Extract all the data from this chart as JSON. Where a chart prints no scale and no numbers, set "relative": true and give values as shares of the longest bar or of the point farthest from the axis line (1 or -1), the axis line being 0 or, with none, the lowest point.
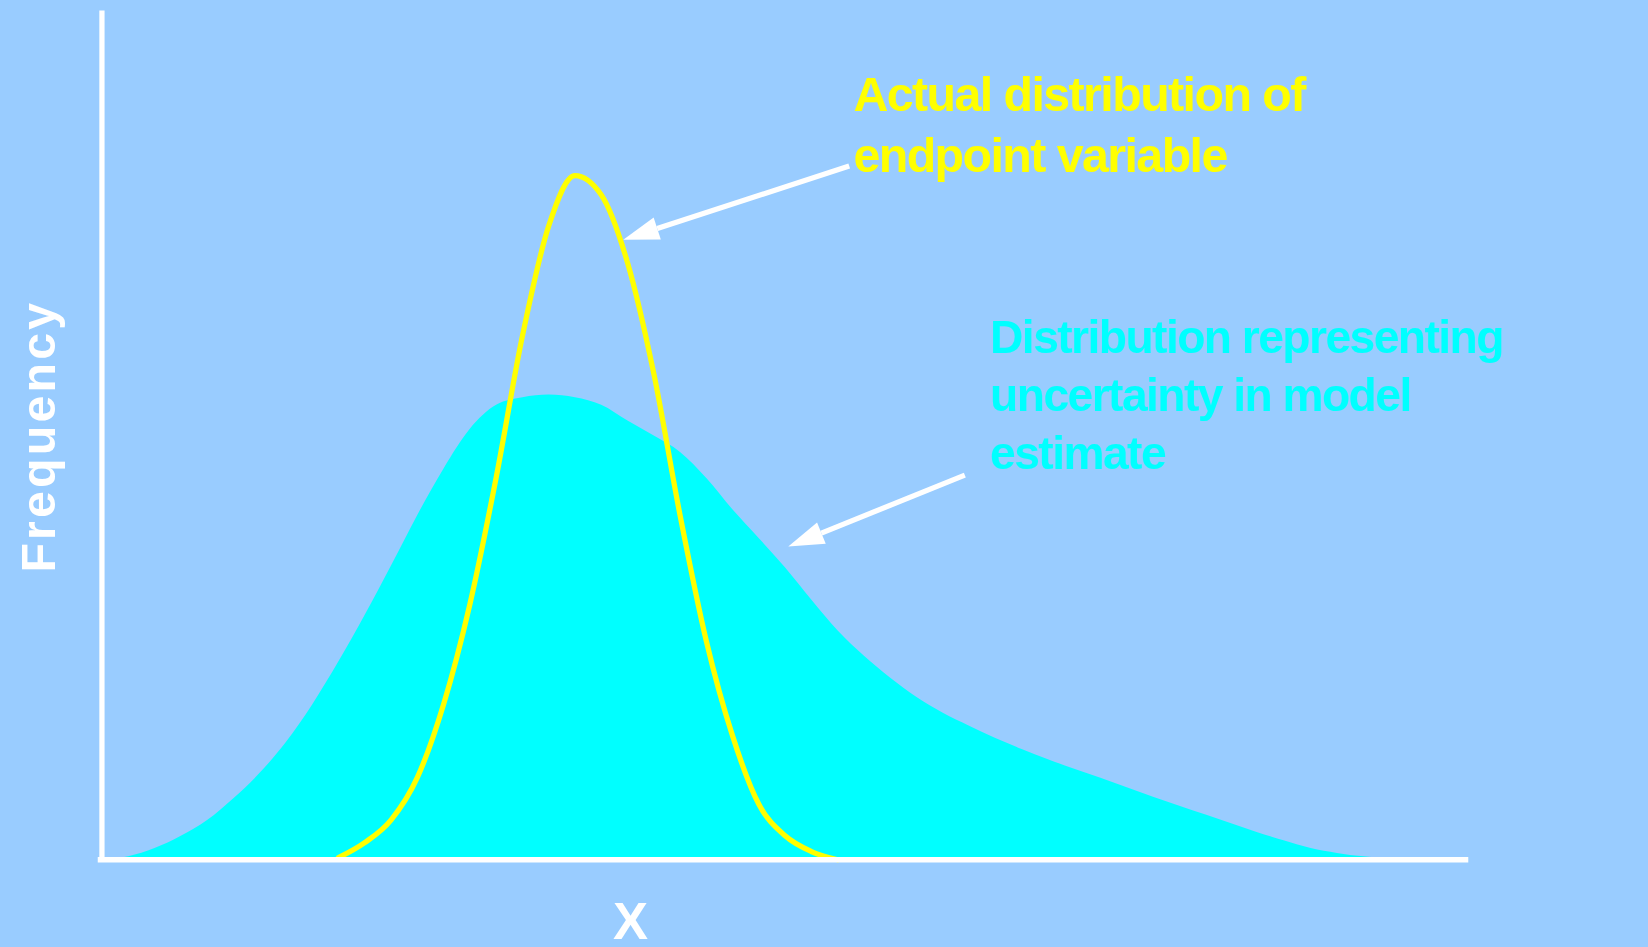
{
  "chart_data": {
    "type": "area",
    "xlabel": "X",
    "ylabel": "Frequency",
    "relative": true,
    "legend": false,
    "grid": false,
    "categories": [
      null,
      null,
      null,
      null,
      null,
      null,
      null,
      null,
      null,
      null,
      null,
      null,
      null,
      null,
      null,
      null,
      null,
      null,
      null,
      null,
      null,
      null,
      null,
      null,
      null,
      null,
      null,
      null,
      null,
      null,
      null,
      null,
      null,
      null,
      null,
      null,
      null,
      null,
      null,
      null,
      null,
      null,
      null,
      null,
      null,
      null,
      null,
      null,
      null,
      null,
      null,
      null,
      null
    ],
    "series": [
      {
        "name": "Distribution representing uncertainty in model estimate",
        "color": "#00ffff",
        "values": [
          0,
          0.005,
          0.017,
          0.035,
          0.058,
          0.09,
          0.127,
          0.172,
          0.227,
          0.29,
          0.358,
          0.43,
          0.504,
          0.572,
          0.63,
          0.665,
          0.676,
          0.68,
          0.676,
          0.665,
          0.642,
          0.62,
          0.596,
          0.558,
          0.512,
          0.47,
          0.427,
          0.38,
          0.335,
          0.298,
          0.266,
          0.238,
          0.215,
          0.196,
          0.178,
          0.162,
          0.147,
          0.133,
          0.12,
          0.106,
          0.092,
          0.079,
          0.066,
          0.053,
          0.04,
          0.028,
          0.017,
          0.01,
          0.005,
          0.002,
          0,
          0,
          0
        ]
      },
      {
        "name": "Actual distribution of endpoint variable",
        "type": "line",
        "color": "#ffff00",
        "values": [
          null,
          null,
          null,
          null,
          null,
          null,
          null,
          null,
          null,
          0.003,
          0.025,
          0.058,
          0.12,
          0.227,
          0.373,
          0.558,
          0.765,
          0.926,
          1.0,
          0.972,
          0.873,
          0.711,
          0.504,
          0.32,
          0.181,
          0.081,
          0.035,
          0.012,
          0,
          null,
          null,
          null,
          null,
          null,
          null,
          null,
          null,
          null,
          null,
          null,
          null,
          null,
          null,
          null,
          null,
          null,
          null,
          null,
          null,
          null,
          null,
          null,
          null
        ]
      }
    ]
  }
}
